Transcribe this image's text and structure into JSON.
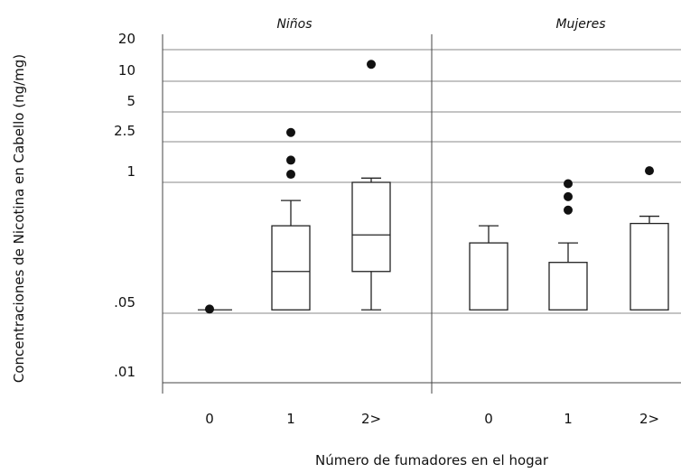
{
  "chart_data": {
    "type": "box",
    "ylabel": "Concentraciones de Nicotina en Cabello (ng/mg)",
    "xlabel": "Número de  fumadores en el hogar",
    "y_scale": "log",
    "y_ticks": [
      {
        "value": 0.01,
        "label": ".01"
      },
      {
        "value": 0.05,
        "label": ".05"
      },
      {
        "value": 1,
        "label": "1"
      },
      {
        "value": 2.5,
        "label": "2.5"
      },
      {
        "value": 5,
        "label": "5"
      },
      {
        "value": 10,
        "label": "10"
      },
      {
        "value": 20,
        "label": "20"
      }
    ],
    "gridlines": [
      0.05,
      1,
      2.5,
      5,
      10,
      20
    ],
    "panels": [
      {
        "title": "Niños",
        "groups": [
          {
            "label": "0",
            "whisker_low": 0.054,
            "q1": 0.054,
            "median": 0.054,
            "q3": 0.054,
            "whisker_high": 0.054,
            "outliers": [
              0.055
            ],
            "box": false
          },
          {
            "label": "1",
            "whisker_low": 0.054,
            "q1": 0.054,
            "median": 0.13,
            "q3": 0.37,
            "whisker_high": 0.66,
            "outliers": [
              1.2,
              1.65,
              3.1
            ],
            "box": true
          },
          {
            "label": "2>",
            "whisker_low": 0.054,
            "q1": 0.13,
            "median": 0.3,
            "q3": 1.0,
            "whisker_high": 1.1,
            "outliers": [
              14.5
            ],
            "box": true
          }
        ]
      },
      {
        "title": "Mujeres",
        "groups": [
          {
            "label": "0",
            "whisker_low": 0.054,
            "q1": 0.054,
            "median": 0.054,
            "q3": 0.25,
            "whisker_high": 0.37,
            "outliers": [],
            "box": true
          },
          {
            "label": "1",
            "whisker_low": 0.054,
            "q1": 0.054,
            "median": 0.054,
            "q3": 0.16,
            "whisker_high": 0.25,
            "outliers": [
              0.53,
              0.72,
              0.97
            ],
            "box": true
          },
          {
            "label": "2>",
            "whisker_low": 0.054,
            "q1": 0.054,
            "median": 0.054,
            "q3": 0.39,
            "whisker_high": 0.46,
            "outliers": [
              1.3
            ],
            "box": true
          }
        ]
      }
    ]
  }
}
